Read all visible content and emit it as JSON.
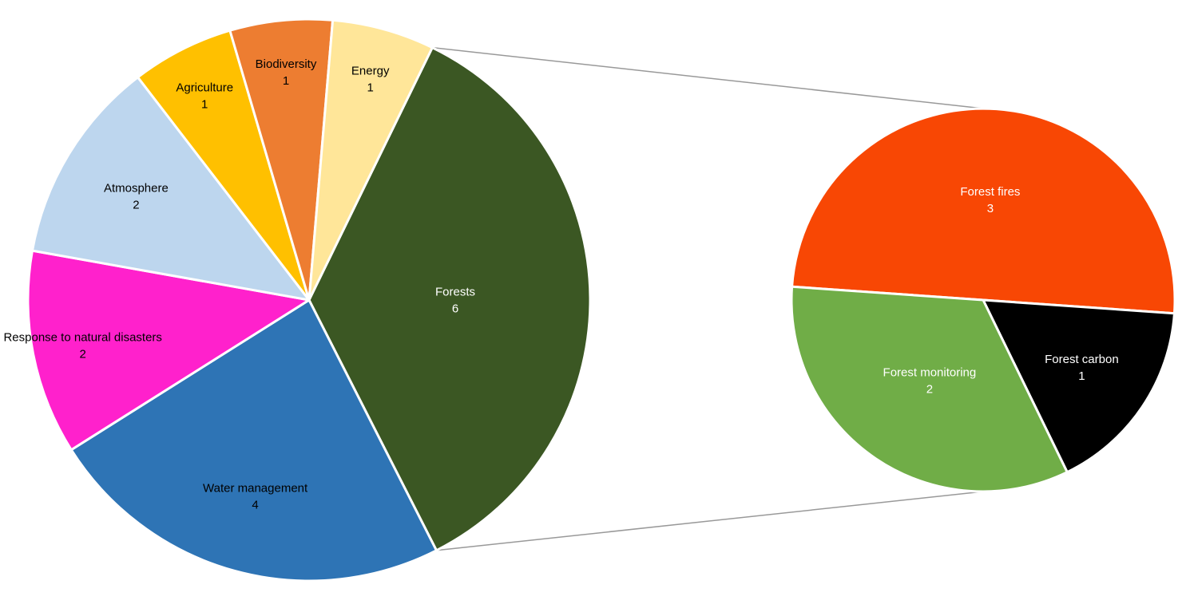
{
  "chart_data": [
    {
      "type": "pie",
      "title": "",
      "series": [
        {
          "values": [
            6,
            4,
            2,
            2,
            1,
            1,
            1
          ],
          "categories": [
            "Forests",
            "Water management",
            "Response to natural disasters",
            "Atmosphere",
            "Agriculture",
            "Biodiversity",
            "Energy"
          ]
        }
      ],
      "slices": [
        {
          "label": "Forests",
          "value": 6,
          "color": "#3b5723",
          "text_color": "#ffffff"
        },
        {
          "label": "Water management",
          "value": 4,
          "color": "#2e74b5",
          "text_color": "#000000"
        },
        {
          "label": "Response to natural disasters",
          "value": 2,
          "color": "#ff21cc",
          "text_color": "#000000"
        },
        {
          "label": "Atmosphere",
          "value": 2,
          "color": "#bdd6ee",
          "text_color": "#000000"
        },
        {
          "label": "Agriculture",
          "value": 1,
          "color": "#ffc000",
          "text_color": "#000000"
        },
        {
          "label": "Biodiversity",
          "value": 1,
          "color": "#ed7d31",
          "text_color": "#000000"
        },
        {
          "label": "Energy",
          "value": 1,
          "color": "#ffe699",
          "text_color": "#000000"
        }
      ]
    },
    {
      "type": "pie",
      "title": "",
      "series": [
        {
          "values": [
            3,
            1,
            2
          ],
          "categories": [
            "Forest fires",
            "Forest carbon",
            "Forest monitoring"
          ]
        }
      ],
      "slices": [
        {
          "label": "Forest fires",
          "value": 3,
          "color": "#f84704",
          "text_color": "#ffffff"
        },
        {
          "label": "Forest carbon",
          "value": 1,
          "color": "#000000",
          "text_color": "#ffffff"
        },
        {
          "label": "Forest monitoring",
          "value": 2,
          "color": "#70ad47",
          "text_color": "#ffffff"
        }
      ]
    }
  ],
  "colors": {
    "connector": "#999999",
    "slice_border": "#ffffff"
  }
}
